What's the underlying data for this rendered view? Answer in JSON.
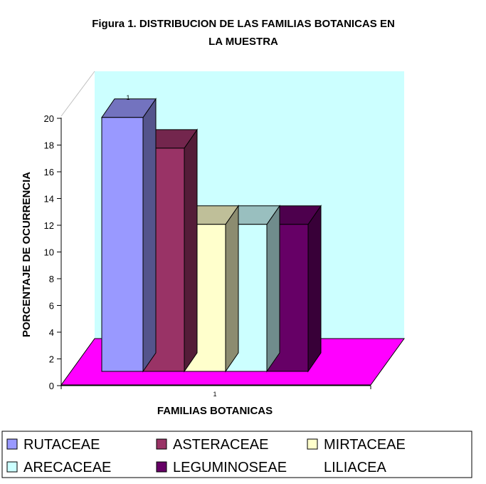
{
  "chart_data": {
    "type": "bar",
    "title_line1": "Figura 1. DISTRIBUCION DE LAS FAMILIAS BOTANICAS EN",
    "title_line2": "LA MUESTRA",
    "xlabel": "FAMILIAS BOTANICAS",
    "ylabel": "PORCENTAJE DE OCURRENCIA",
    "category_label": "1",
    "top_label": "1",
    "ylim": [
      0,
      20
    ],
    "yticks": [
      "0",
      "2",
      "4",
      "6",
      "8",
      "10",
      "12",
      "14",
      "16",
      "18",
      "20"
    ],
    "grid": false,
    "legend_position": "bottom",
    "series": [
      {
        "name": "RUTACEAE",
        "value": 19,
        "color": "#9999ff"
      },
      {
        "name": "ASTERACEAE",
        "value": 16.7,
        "color": "#993366"
      },
      {
        "name": "MIRTACEAE",
        "value": 11,
        "color": "#ffffcc"
      },
      {
        "name": "ARECACEAE",
        "value": 11,
        "color": "#ccffff"
      },
      {
        "name": "LEGUMINOSEAE",
        "value": 11,
        "color": "#660066"
      },
      {
        "name": "LILIACEA",
        "value": 0,
        "color": "#ffffff"
      }
    ],
    "wall_color": "#ccffff",
    "floor_color": "#ff00ff"
  }
}
